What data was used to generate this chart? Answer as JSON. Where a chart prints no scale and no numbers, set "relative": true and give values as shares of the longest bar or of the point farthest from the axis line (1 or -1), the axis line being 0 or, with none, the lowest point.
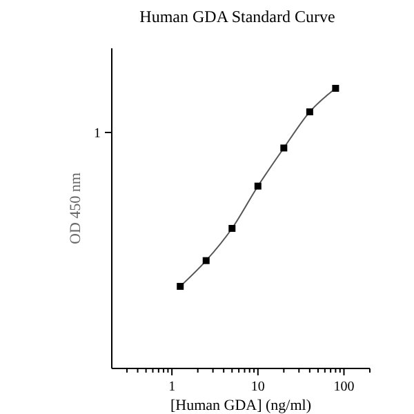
{
  "chart_data": {
    "type": "line",
    "title": "Human GDA Standard Curve",
    "xlabel": "[Human GDA] (ng/ml)",
    "ylabel": "OD 450 nm",
    "x": [
      1.25,
      2.5,
      5,
      10,
      20,
      40,
      80
    ],
    "series": [
      {
        "color": "#000000",
        "values": [
          0.293,
          0.385,
          0.5,
          0.651,
          0.787,
          0.916,
          1
        ]
      }
    ],
    "relative": true,
    "log": "x",
    "marker": "square",
    "line_style": "solid",
    "xlim": [
      0.2,
      200
    ],
    "xticks": [
      {
        "value": 0.3,
        "label": null
      },
      {
        "value": 0.4,
        "label": null
      },
      {
        "value": 0.5,
        "label": null
      },
      {
        "value": 0.6,
        "label": null
      },
      {
        "value": 0.7,
        "label": null
      },
      {
        "value": 0.8,
        "label": null
      },
      {
        "value": 0.9,
        "label": null
      },
      1,
      {
        "value": 2,
        "label": null
      },
      {
        "value": 3,
        "label": null
      },
      {
        "value": 4,
        "label": null
      },
      {
        "value": 5,
        "label": null
      },
      {
        "value": 6,
        "label": null
      },
      {
        "value": 7,
        "label": null
      },
      {
        "value": 8,
        "label": null
      },
      {
        "value": 9,
        "label": null
      },
      10,
      {
        "value": 20,
        "label": null
      },
      {
        "value": 30,
        "label": null
      },
      {
        "value": 40,
        "label": null
      },
      {
        "value": 50,
        "label": null
      },
      {
        "value": 60,
        "label": null
      },
      {
        "value": 70,
        "label": null
      },
      {
        "value": 80,
        "label": null
      },
      {
        "value": 90,
        "label": null
      },
      100,
      {
        "value": 200,
        "label": null
      }
    ],
    "annotations": [
      "1"
    ]
  }
}
